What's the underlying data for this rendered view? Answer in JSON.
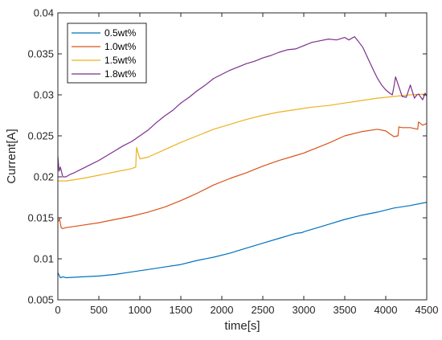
{
  "chart_data": {
    "type": "line",
    "title": "",
    "xlabel": "time[s]",
    "ylabel": "Current[A]",
    "xlim": [
      0,
      4500
    ],
    "ylim": [
      0.005,
      0.04
    ],
    "xticks": [
      0,
      500,
      1000,
      1500,
      2000,
      2500,
      3000,
      3500,
      4000,
      4500
    ],
    "yticks": [
      0.005,
      0.01,
      0.015,
      0.02,
      0.025,
      0.03,
      0.035,
      0.04
    ],
    "xtick_labels": [
      "0",
      "500",
      "1000",
      "1500",
      "2000",
      "2500",
      "3000",
      "3500",
      "4000",
      "4500"
    ],
    "ytick_labels": [
      "0.005",
      "0.01",
      "0.015",
      "0.02",
      "0.025",
      "0.03",
      "0.035",
      "0.04"
    ],
    "grid": false,
    "legend_position": "top-left",
    "series": [
      {
        "name": "0.5wt%",
        "color": "#0072BD",
        "x": [
          0,
          30,
          60,
          100,
          300,
          500,
          700,
          900,
          1100,
          1300,
          1500,
          1700,
          1900,
          2100,
          2300,
          2500,
          2700,
          2900,
          2980,
          3000,
          3100,
          3300,
          3500,
          3700,
          3900,
          4100,
          4300,
          4500
        ],
        "y": [
          0.0083,
          0.0077,
          0.0078,
          0.0077,
          0.0078,
          0.0079,
          0.0081,
          0.0084,
          0.0087,
          0.009,
          0.0093,
          0.0098,
          0.0102,
          0.0107,
          0.0113,
          0.0119,
          0.0125,
          0.0131,
          0.0132,
          0.0133,
          0.0136,
          0.0142,
          0.0148,
          0.0153,
          0.0157,
          0.0162,
          0.0165,
          0.0169
        ]
      },
      {
        "name": "1.0wt%",
        "color": "#D95319",
        "x": [
          0,
          20,
          40,
          60,
          100,
          300,
          500,
          700,
          900,
          1100,
          1300,
          1500,
          1700,
          1900,
          2100,
          2300,
          2500,
          2700,
          2900,
          3000,
          3100,
          3300,
          3500,
          3700,
          3900,
          4000,
          4100,
          4150,
          4160,
          4200,
          4300,
          4390,
          4400,
          4450,
          4500
        ],
        "y": [
          0.0145,
          0.0149,
          0.0138,
          0.0137,
          0.0138,
          0.0141,
          0.0144,
          0.0148,
          0.0152,
          0.0157,
          0.0163,
          0.0171,
          0.018,
          0.019,
          0.0198,
          0.0205,
          0.0213,
          0.022,
          0.0226,
          0.0229,
          0.0233,
          0.0241,
          0.025,
          0.0255,
          0.0258,
          0.0256,
          0.0249,
          0.025,
          0.0261,
          0.026,
          0.026,
          0.0258,
          0.0267,
          0.0263,
          0.0265
        ]
      },
      {
        "name": "1.5wt%",
        "color": "#EDB120",
        "x": [
          0,
          100,
          300,
          500,
          700,
          900,
          950,
          960,
          1000,
          1100,
          1300,
          1500,
          1700,
          1900,
          2100,
          2300,
          2500,
          2700,
          2900,
          3100,
          3300,
          3500,
          3700,
          3900,
          4100,
          4300,
          4500
        ],
        "y": [
          0.0195,
          0.0195,
          0.0198,
          0.0202,
          0.0206,
          0.021,
          0.0212,
          0.0236,
          0.0222,
          0.0224,
          0.0233,
          0.0242,
          0.025,
          0.0258,
          0.0264,
          0.027,
          0.0275,
          0.0279,
          0.0282,
          0.0285,
          0.0287,
          0.029,
          0.0293,
          0.0296,
          0.0298,
          0.03,
          0.0301
        ]
      },
      {
        "name": "1.8wt%",
        "color": "#7E2F8E",
        "x": [
          0,
          15,
          30,
          60,
          100,
          150,
          200,
          300,
          400,
          500,
          600,
          700,
          800,
          900,
          1000,
          1100,
          1200,
          1300,
          1400,
          1500,
          1600,
          1700,
          1800,
          1900,
          2000,
          2100,
          2200,
          2300,
          2400,
          2500,
          2600,
          2700,
          2800,
          2900,
          3000,
          3100,
          3200,
          3300,
          3400,
          3500,
          3550,
          3620,
          3660,
          3720,
          3780,
          3850,
          3900,
          3950,
          4000,
          4050,
          4080,
          4100,
          4120,
          4200,
          4250,
          4300,
          4350,
          4380,
          4400,
          4450,
          4480,
          4500
        ],
        "y": [
          0.0225,
          0.0207,
          0.0212,
          0.02,
          0.02,
          0.0203,
          0.0205,
          0.021,
          0.0215,
          0.022,
          0.0226,
          0.0232,
          0.0238,
          0.0243,
          0.025,
          0.0257,
          0.0266,
          0.0274,
          0.0281,
          0.029,
          0.0297,
          0.0305,
          0.0312,
          0.032,
          0.0325,
          0.033,
          0.0334,
          0.0338,
          0.0341,
          0.0345,
          0.0348,
          0.0352,
          0.0355,
          0.0356,
          0.036,
          0.0364,
          0.0366,
          0.0368,
          0.0367,
          0.037,
          0.0367,
          0.0371,
          0.0366,
          0.0358,
          0.0345,
          0.033,
          0.032,
          0.0312,
          0.0306,
          0.0302,
          0.03,
          0.031,
          0.0322,
          0.0298,
          0.0297,
          0.0312,
          0.0296,
          0.03,
          0.0301,
          0.0294,
          0.0302,
          0.0298
        ]
      }
    ]
  }
}
